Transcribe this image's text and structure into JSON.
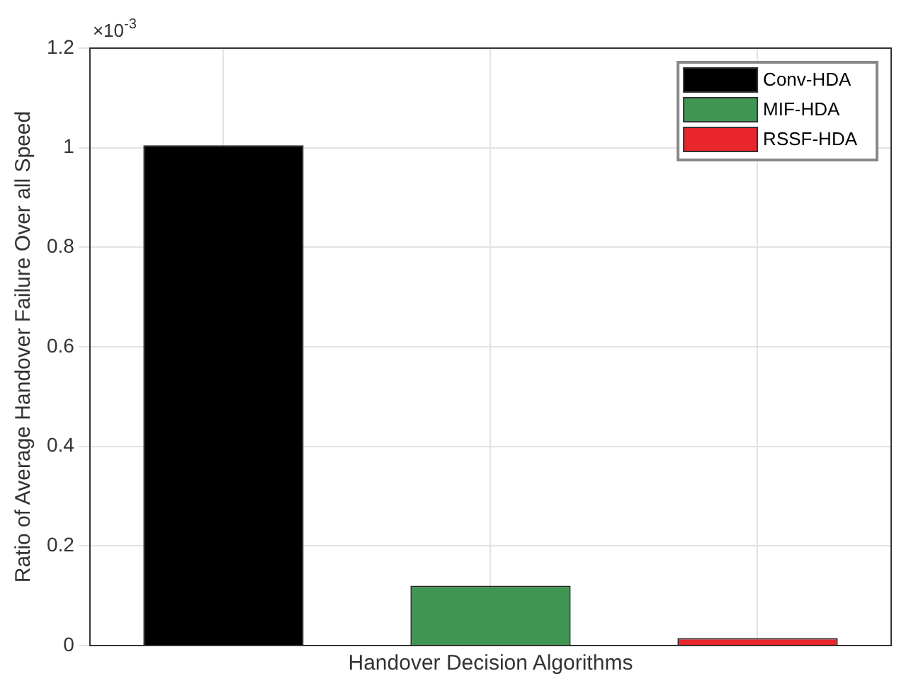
{
  "chart_data": {
    "type": "bar",
    "xlabel": "Handover Decision Algorithms",
    "ylabel": "Ratio of Average Handover Failure Over all Speed",
    "annotations": [
      "×10$^{-3}$"
    ],
    "categories": [
      null,
      null,
      null
    ],
    "series": [
      {
        "name": "Conv-HDA",
        "color": "#000000",
        "values": [
          1.005,
          null,
          null
        ]
      },
      {
        "name": "MIF-HDA",
        "color": "#3f9652",
        "values": [
          null,
          0.12,
          null
        ]
      },
      {
        "name": "RSSF-HDA",
        "color": "#e8262b",
        "values": [
          null,
          null,
          0.015
        ]
      }
    ],
    "ylim": [
      0,
      1.2
    ],
    "yticks": [
      0,
      0.2,
      0.4,
      0.6,
      0.8,
      1,
      1.2
    ],
    "grid": true,
    "legend": "top right",
    "tick_labels": "y"
  }
}
